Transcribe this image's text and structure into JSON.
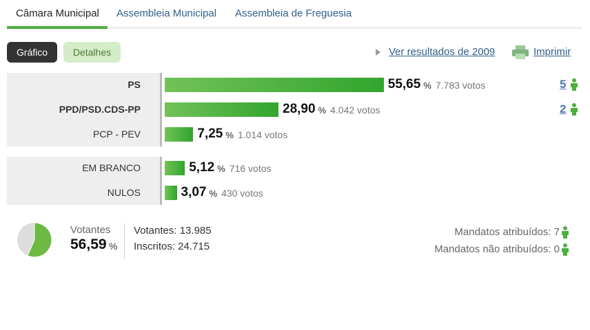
{
  "tabs": [
    "Câmara Municipal",
    "Assembleia Municipal",
    "Assembleia de Freguesia"
  ],
  "buttons": [
    "Gráfico",
    "Detalhes"
  ],
  "links": {
    "previous": "Ver resultados de 2009",
    "print": "Imprimir"
  },
  "percent_sign": "%",
  "parties": [
    {
      "name": "PS",
      "percent": 55.65,
      "percent_label": "55,65",
      "votes": "7.783 votos",
      "mandates": 5
    },
    {
      "name": "PPD/PSD.CDS-PP",
      "percent": 28.9,
      "percent_label": "28,90",
      "votes": "4.042 votos",
      "mandates": 2
    },
    {
      "name": "PCP - PEV",
      "percent": 7.25,
      "percent_label": "7,25",
      "votes": "1.014 votos"
    }
  ],
  "others": [
    {
      "name": "EM BRANCO",
      "percent": 5.12,
      "percent_label": "5,12",
      "votes": "716 votos"
    },
    {
      "name": "NULOS",
      "percent": 3.07,
      "percent_label": "3,07",
      "votes": "430 votos"
    }
  ],
  "turnout": {
    "label": "Votantes",
    "percent": 56.59,
    "percent_label": "56,59"
  },
  "totals": {
    "voters": "Votantes: 13.985",
    "registered": "Inscritos: 24.715"
  },
  "mandates": {
    "assigned": "Mandatos atribuídos: 7",
    "unassigned": "Mandatos não atribuídos: 0"
  }
}
